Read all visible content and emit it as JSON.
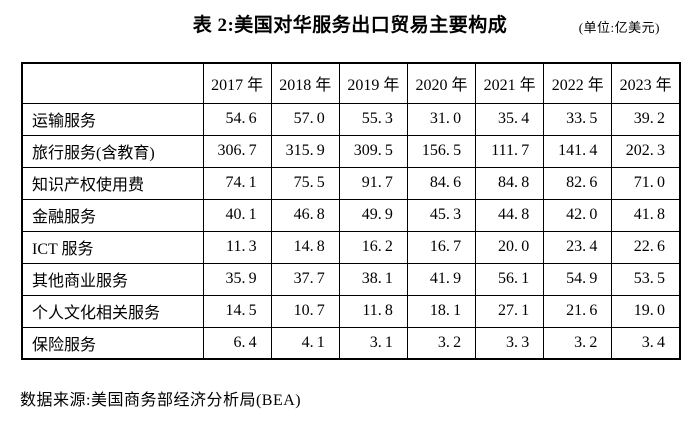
{
  "header": {
    "title": "表 2:美国对华服务出口贸易主要构成",
    "unit_note": "(单位:亿美元)"
  },
  "table": {
    "corner_label": "",
    "col_headers": [
      "2017 年",
      "2018 年",
      "2019 年",
      "2020 年",
      "2021 年",
      "2022 年",
      "2023 年"
    ]
  },
  "footer": {
    "source": "数据来源:美国商务部经济分析局(BEA)"
  },
  "colors": {
    "background": "#ffffff",
    "text": "#000000",
    "border": "#000000"
  },
  "chart_data": {
    "type": "table",
    "title": "表 2:美国对华服务出口贸易主要构成",
    "unit": "亿美元",
    "columns": [
      "2017",
      "2018",
      "2019",
      "2020",
      "2021",
      "2022",
      "2023"
    ],
    "rows": [
      {
        "label": "运输服务",
        "values": [
          54.6,
          57.0,
          55.3,
          31.0,
          35.4,
          33.5,
          39.2
        ]
      },
      {
        "label": "旅行服务(含教育)",
        "values": [
          306.7,
          315.9,
          309.5,
          156.5,
          111.7,
          141.4,
          202.3
        ]
      },
      {
        "label": "知识产权使用费",
        "values": [
          74.1,
          75.5,
          91.7,
          84.6,
          84.8,
          82.6,
          71.0
        ]
      },
      {
        "label": "金融服务",
        "values": [
          40.1,
          46.8,
          49.9,
          45.3,
          44.8,
          42.0,
          41.8
        ]
      },
      {
        "label": "ICT 服务",
        "values": [
          11.3,
          14.8,
          16.2,
          16.7,
          20.0,
          23.4,
          22.6
        ]
      },
      {
        "label": "其他商业服务",
        "values": [
          35.9,
          37.7,
          38.1,
          41.9,
          56.1,
          54.9,
          53.5
        ]
      },
      {
        "label": "个人文化相关服务",
        "values": [
          14.5,
          10.7,
          11.8,
          18.1,
          27.1,
          21.6,
          19.0
        ]
      },
      {
        "label": "保险服务",
        "values": [
          6.4,
          4.1,
          3.1,
          3.2,
          3.3,
          3.2,
          3.4
        ]
      }
    ],
    "source": "美国商务部经济分析局(BEA)"
  }
}
